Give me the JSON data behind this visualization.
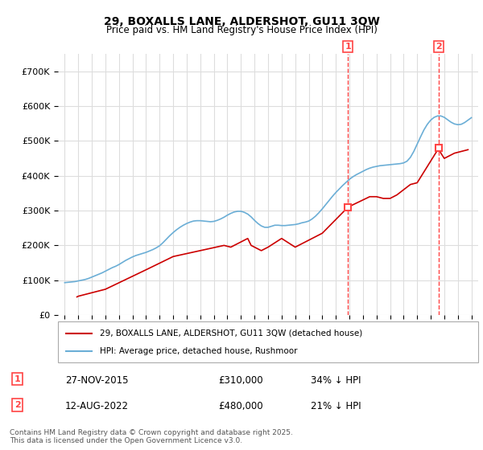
{
  "title": "29, BOXALLS LANE, ALDERSHOT, GU11 3QW",
  "subtitle": "Price paid vs. HM Land Registry's House Price Index (HPI)",
  "hpi_color": "#6baed6",
  "price_color": "#cc0000",
  "marker_line_color": "#ff4444",
  "background_color": "#ffffff",
  "grid_color": "#dddddd",
  "ylim": [
    0,
    750000
  ],
  "yticks": [
    0,
    100000,
    200000,
    300000,
    400000,
    500000,
    600000,
    700000
  ],
  "ytick_labels": [
    "£0",
    "£100K",
    "£200K",
    "£300K",
    "£400K",
    "£500K",
    "£600K",
    "£700K"
  ],
  "legend_entry1": "29, BOXALLS LANE, ALDERSHOT, GU11 3QW (detached house)",
  "legend_entry2": "HPI: Average price, detached house, Rushmoor",
  "annotation1_label": "1",
  "annotation1_date": "27-NOV-2015",
  "annotation1_price": "£310,000",
  "annotation1_hpi": "34% ↓ HPI",
  "annotation2_label": "2",
  "annotation2_date": "12-AUG-2022",
  "annotation2_price": "£480,000",
  "annotation2_hpi": "21% ↓ HPI",
  "footnote": "Contains HM Land Registry data © Crown copyright and database right 2025.\nThis data is licensed under the Open Government Licence v3.0.",
  "hpi_x": [
    1995.0,
    1995.25,
    1995.5,
    1995.75,
    1996.0,
    1996.25,
    1996.5,
    1996.75,
    1997.0,
    1997.25,
    1997.5,
    1997.75,
    1998.0,
    1998.25,
    1998.5,
    1998.75,
    1999.0,
    1999.25,
    1999.5,
    1999.75,
    2000.0,
    2000.25,
    2000.5,
    2000.75,
    2001.0,
    2001.25,
    2001.5,
    2001.75,
    2002.0,
    2002.25,
    2002.5,
    2002.75,
    2003.0,
    2003.25,
    2003.5,
    2003.75,
    2004.0,
    2004.25,
    2004.5,
    2004.75,
    2005.0,
    2005.25,
    2005.5,
    2005.75,
    2006.0,
    2006.25,
    2006.5,
    2006.75,
    2007.0,
    2007.25,
    2007.5,
    2007.75,
    2008.0,
    2008.25,
    2008.5,
    2008.75,
    2009.0,
    2009.25,
    2009.5,
    2009.75,
    2010.0,
    2010.25,
    2010.5,
    2010.75,
    2011.0,
    2011.25,
    2011.5,
    2011.75,
    2012.0,
    2012.25,
    2012.5,
    2012.75,
    2013.0,
    2013.25,
    2013.5,
    2013.75,
    2014.0,
    2014.25,
    2014.5,
    2014.75,
    2015.0,
    2015.25,
    2015.5,
    2015.75,
    2016.0,
    2016.25,
    2016.5,
    2016.75,
    2017.0,
    2017.25,
    2017.5,
    2017.75,
    2018.0,
    2018.25,
    2018.5,
    2018.75,
    2019.0,
    2019.25,
    2019.5,
    2019.75,
    2020.0,
    2020.25,
    2020.5,
    2020.75,
    2021.0,
    2021.25,
    2021.5,
    2021.75,
    2022.0,
    2022.25,
    2022.5,
    2022.75,
    2023.0,
    2023.25,
    2023.5,
    2023.75,
    2024.0,
    2024.25,
    2024.5,
    2024.75,
    2025.0
  ],
  "hpi_y": [
    93000,
    94000,
    95000,
    96000,
    98000,
    100000,
    102000,
    105000,
    109000,
    113000,
    117000,
    121000,
    126000,
    131000,
    136000,
    140000,
    145000,
    151000,
    157000,
    162000,
    167000,
    171000,
    174000,
    177000,
    180000,
    184000,
    188000,
    193000,
    199000,
    208000,
    218000,
    228000,
    237000,
    245000,
    252000,
    258000,
    263000,
    267000,
    270000,
    271000,
    271000,
    270000,
    269000,
    268000,
    269000,
    272000,
    276000,
    281000,
    287000,
    292000,
    296000,
    298000,
    298000,
    295000,
    290000,
    282000,
    272000,
    263000,
    256000,
    252000,
    252000,
    255000,
    258000,
    258000,
    257000,
    257000,
    258000,
    259000,
    260000,
    262000,
    265000,
    267000,
    270000,
    276000,
    284000,
    294000,
    305000,
    317000,
    329000,
    341000,
    352000,
    362000,
    372000,
    381000,
    390000,
    397000,
    403000,
    408000,
    413000,
    418000,
    422000,
    425000,
    427000,
    429000,
    430000,
    431000,
    432000,
    433000,
    434000,
    435000,
    437000,
    442000,
    453000,
    470000,
    491000,
    512000,
    532000,
    548000,
    560000,
    568000,
    572000,
    572000,
    568000,
    561000,
    554000,
    549000,
    547000,
    548000,
    553000,
    560000,
    567000
  ],
  "price_x": [
    1995.9,
    1996.0,
    1998.0,
    2001.0,
    2003.0,
    2006.75,
    2007.25,
    2008.5,
    2008.75,
    2009.5,
    2010.0,
    2011.0,
    2012.0,
    2013.5,
    2014.0,
    2015.9,
    2017.5,
    2018.0,
    2018.5,
    2019.0,
    2019.5,
    2020.0,
    2020.5,
    2021.0,
    2022.6,
    2022.75,
    2023.0,
    2023.25,
    2023.5,
    2023.75,
    2024.25,
    2024.75
  ],
  "price_y": [
    52000,
    54000,
    74000,
    130000,
    168000,
    200000,
    195000,
    220000,
    200000,
    185000,
    195000,
    220000,
    195000,
    225000,
    235000,
    310000,
    340000,
    340000,
    335000,
    335000,
    345000,
    360000,
    375000,
    380000,
    480000,
    465000,
    450000,
    455000,
    460000,
    465000,
    470000,
    475000
  ],
  "sale1_x": 2015.9,
  "sale1_y": 310000,
  "sale2_x": 2022.6,
  "sale2_y": 480000,
  "xlim_left": 1994.5,
  "xlim_right": 2025.5
}
